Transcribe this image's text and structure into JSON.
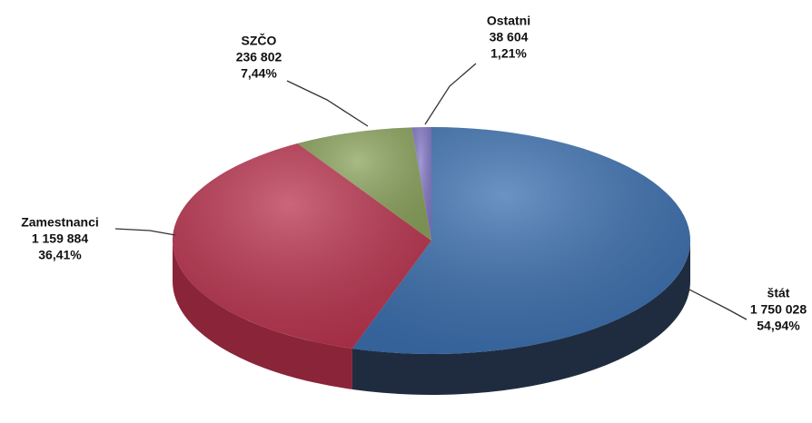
{
  "chart_data": {
    "type": "pie3d",
    "categories": [
      "štát",
      "Zamestnanci",
      "SZČO",
      "Ostatni"
    ],
    "values": [
      1750028,
      1159884,
      236802,
      38604
    ],
    "value_labels": [
      "1 750 028",
      "1 159 884",
      "236 802",
      "38 604"
    ],
    "percentages": [
      54.94,
      36.41,
      7.44,
      1.21
    ],
    "percentage_labels": [
      "54,94%",
      "36,41%",
      "7,44%",
      "1,21%"
    ],
    "colors": [
      "#3b6fae",
      "#b9344f",
      "#8ba35d",
      "#8378c6"
    ],
    "side_colors": [
      "#1f2c40",
      "#8a2439",
      "#5d7040",
      "#5b5190"
    ]
  }
}
